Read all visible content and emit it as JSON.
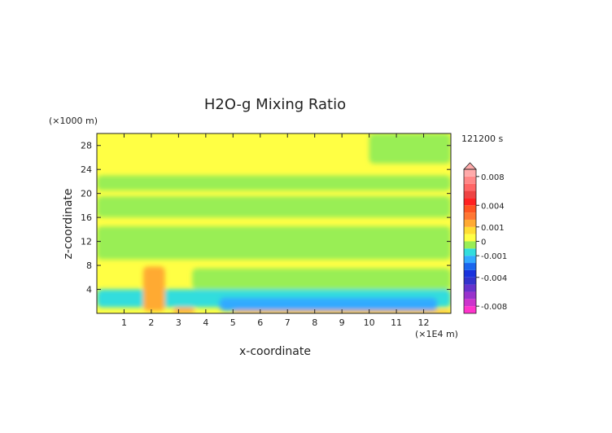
{
  "chart_data": {
    "type": "heatmap",
    "title": "H2O-g Mixing Ratio",
    "xlabel": "x-coordinate",
    "ylabel": "z-coordinate",
    "x_unit": "(×1E4 m)",
    "y_unit": "(×1000 m)",
    "time_label": "121200 s",
    "xlim": [
      0,
      13
    ],
    "ylim": [
      0,
      30
    ],
    "x_ticks": [
      1,
      2,
      3,
      4,
      5,
      6,
      7,
      8,
      9,
      10,
      11,
      12
    ],
    "y_ticks": [
      4,
      8,
      12,
      16,
      20,
      24,
      28
    ],
    "colorbar": {
      "levels": [
        -0.009,
        -0.008,
        -0.007,
        -0.006,
        -0.005,
        -0.004,
        -0.003,
        -0.002,
        -0.001,
        -0.0005,
        0,
        0.0005,
        0.001,
        0.002,
        0.003,
        0.004,
        0.005,
        0.006,
        0.007,
        0.008,
        0.009
      ],
      "colors": [
        "#ff33cc",
        "#cc33cc",
        "#9933cc",
        "#6633cc",
        "#3333cc",
        "#1a33dd",
        "#1a66ee",
        "#33aaff",
        "#33dddd",
        "#99ee55",
        "#ffff44",
        "#ffdd33",
        "#ffaa33",
        "#ff7733",
        "#ff5522",
        "#ff2222",
        "#ee4444",
        "#ff6666",
        "#ff8888",
        "#ffaaaa"
      ],
      "tick_labels": [
        {
          "value": 0.008,
          "label": "0.008"
        },
        {
          "value": 0.004,
          "label": "0.004"
        },
        {
          "value": 0.001,
          "label": "0.001"
        },
        {
          "value": 0,
          "label": "0"
        },
        {
          "value": -0.001,
          "label": "-0.001"
        },
        {
          "value": -0.004,
          "label": "-0.004"
        },
        {
          "value": -0.008,
          "label": "-0.008"
        }
      ]
    },
    "regions": [
      {
        "level": "green",
        "color": "#99ee55",
        "x0": 0,
        "x1": 13,
        "z0": 20.5,
        "z1": 23
      },
      {
        "level": "green",
        "color": "#99ee55",
        "x0": 0,
        "x1": 13,
        "z0": 16,
        "z1": 19.5
      },
      {
        "level": "green",
        "color": "#99ee55",
        "x0": 0,
        "x1": 13,
        "z0": 9,
        "z1": 14.5
      },
      {
        "level": "green",
        "color": "#99ee55",
        "x0": 10,
        "x1": 13,
        "z0": 25,
        "z1": 30
      },
      {
        "level": "green",
        "color": "#99ee55",
        "x0": 3.5,
        "x1": 13,
        "z0": 4,
        "z1": 7.5
      },
      {
        "level": "cyan",
        "color": "#33dddd",
        "x0": 0,
        "x1": 13,
        "z0": 1,
        "z1": 4
      },
      {
        "level": "blue",
        "color": "#33aaff",
        "x0": 4.5,
        "x1": 12.5,
        "z0": 0.4,
        "z1": 2.6
      },
      {
        "level": "orange",
        "color": "#ffaa33",
        "x0": 1.7,
        "x1": 2.5,
        "z0": 0.4,
        "z1": 7.8
      },
      {
        "level": "orange",
        "color": "#ffaa33",
        "x0": 2.8,
        "x1": 3.6,
        "z0": 0,
        "z1": 1
      },
      {
        "level": "orange",
        "color": "#ffaa33",
        "x0": 5,
        "x1": 13,
        "z0": 0,
        "z1": 0.5
      }
    ]
  }
}
